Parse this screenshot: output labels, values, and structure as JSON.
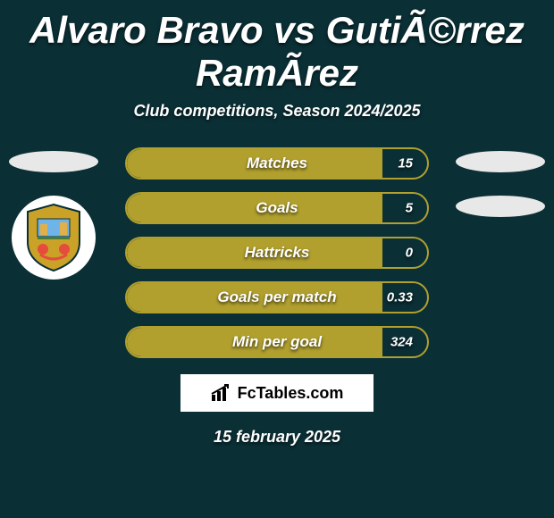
{
  "background_color": "#0a2f35",
  "title": "Alvaro Bravo vs GutiÃ©rrez RamÃ­rez",
  "subtitle": "Club competitions, Season 2024/2025",
  "date": "15 february 2025",
  "logo_text": "FcTables.com",
  "accent_color": "#b1a02e",
  "text_color": "#ffffff",
  "stat_bar": {
    "border_color": "#b1a02e",
    "fill_color": "#b1a02e",
    "height": 32,
    "radius": 18,
    "label_fontsize": 17,
    "value_fontsize": 15
  },
  "stats": [
    {
      "label": "Matches",
      "value": "15",
      "fill_percent": 85
    },
    {
      "label": "Goals",
      "value": "5",
      "fill_percent": 85
    },
    {
      "label": "Hattricks",
      "value": "0",
      "fill_percent": 85
    },
    {
      "label": "Goals per match",
      "value": "0.33",
      "fill_percent": 85
    },
    {
      "label": "Min per goal",
      "value": "324",
      "fill_percent": 85
    }
  ],
  "left": {
    "player_oval_color": "#e8e8e8",
    "club_badge": true
  },
  "right": {
    "player_oval_color": "#e8e8e8",
    "club_oval_color": "#e8e8e8"
  }
}
